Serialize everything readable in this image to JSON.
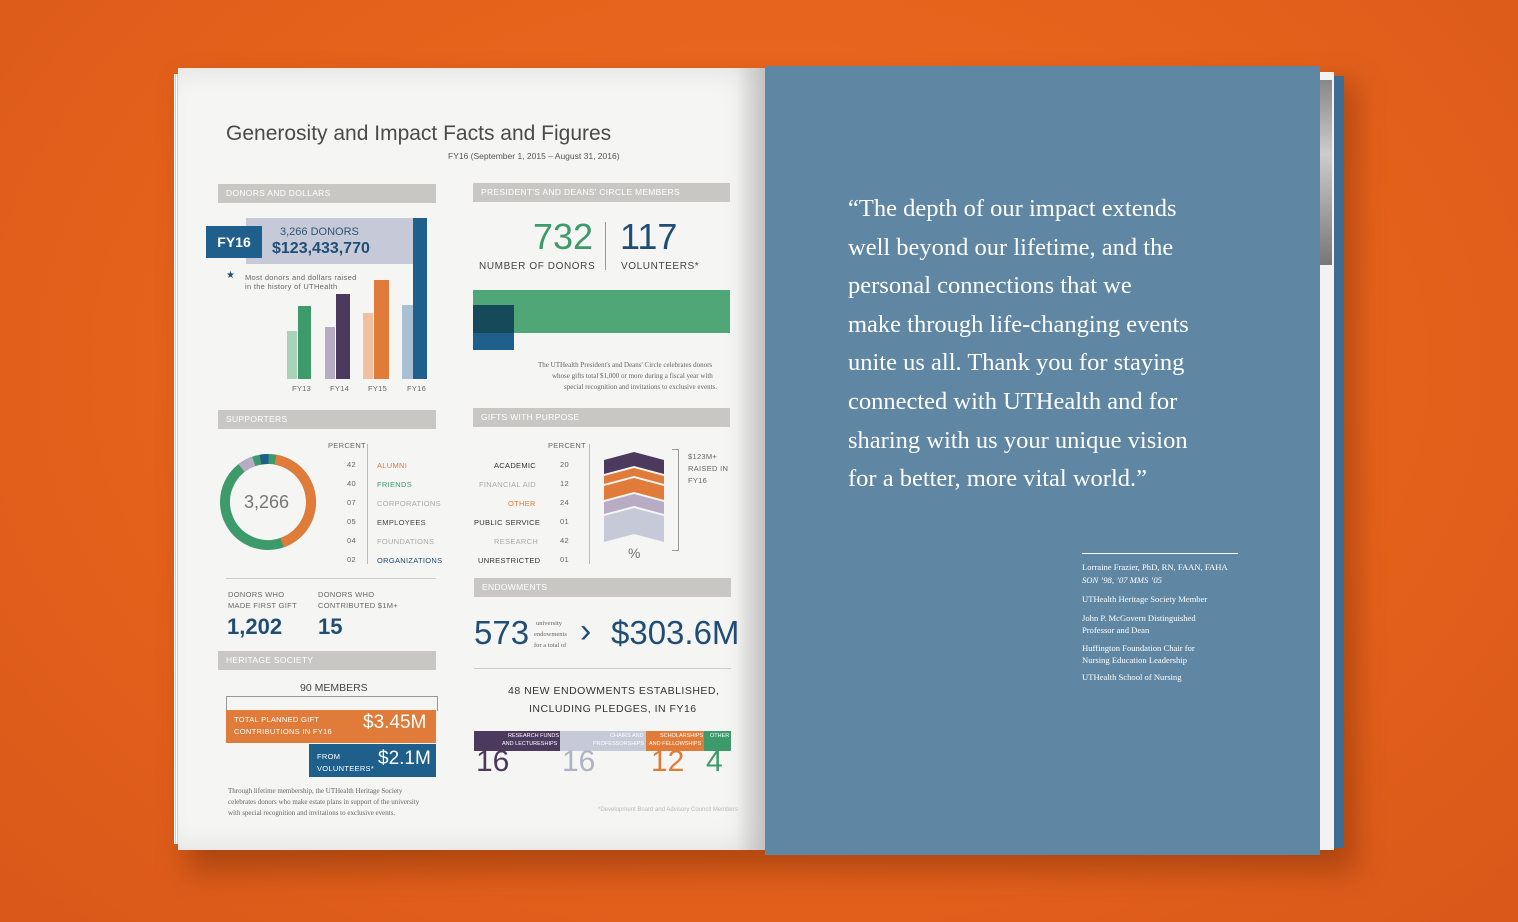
{
  "left_page": {
    "title": "Generosity and Impact Facts and Figures",
    "subtitle": "FY16 (September 1, 2015 – August 31, 2016)",
    "donors_and_dollars": {
      "header": "DONORS AND DOLLARS",
      "fy_label": "FY16",
      "donors": "3,266 DONORS",
      "dollars": "$123,433,770",
      "note_line1": "Most donors and dollars raised",
      "note_line2": "in the history of UTHealth",
      "years": [
        "FY13",
        "FY14",
        "FY15",
        "FY16"
      ]
    },
    "circle": {
      "header": "PRESIDENT'S AND DEANS' CIRCLE MEMBERS",
      "donors_num": "732",
      "donors_label": "NUMBER OF DONORS",
      "volunteers_num": "117",
      "volunteers_label": "VOLUNTEERS*",
      "caption_line1": "The UTHealth President's and Deans' Circle celebrates donors",
      "caption_line2": "whose gifts total $1,000 or more during a fiscal year with",
      "caption_line3": "special recognition and invitations to exclusive events."
    },
    "supporters": {
      "header": "SUPPORTERS",
      "center": "3,266",
      "percent_label": "PERCENT",
      "rows": [
        {
          "pct": "42",
          "label": "ALUMNI"
        },
        {
          "pct": "40",
          "label": "FRIENDS"
        },
        {
          "pct": "07",
          "label": "CORPORATIONS"
        },
        {
          "pct": "05",
          "label": "EMPLOYEES"
        },
        {
          "pct": "04",
          "label": "FOUNDATIONS"
        },
        {
          "pct": "02",
          "label": "ORGANIZATIONS"
        }
      ],
      "first_gift_label1": "DONORS WHO",
      "first_gift_label2": "MADE FIRST GIFT",
      "first_gift_value": "1,202",
      "million_label1": "DONORS WHO",
      "million_label2": "CONTRIBUTED $1M+",
      "million_value": "15"
    },
    "gifts": {
      "header": "GIFTS WITH PURPOSE",
      "percent_label": "PERCENT",
      "rows": [
        {
          "label": "ACADEMIC",
          "pct": "20"
        },
        {
          "label": "FINANCIAL AID",
          "pct": "12"
        },
        {
          "label": "OTHER",
          "pct": "24"
        },
        {
          "label": "PUBLIC SERVICE",
          "pct": "01"
        },
        {
          "label": "RESEARCH",
          "pct": "42"
        },
        {
          "label": "UNRESTRICTED",
          "pct": "01"
        }
      ],
      "raised1": "$123M+",
      "raised2": "RAISED IN",
      "raised3": "FY16",
      "pct_symbol": "%"
    },
    "heritage": {
      "header": "HERITAGE SOCIETY",
      "members": "90 MEMBERS",
      "planned_label1": "TOTAL PLANNED GIFT",
      "planned_label2": "CONTRIBUTIONS IN FY16",
      "planned_value": "$3.45M",
      "vol_label1": "FROM",
      "vol_label2": "VOLUNTEERS*",
      "vol_value": "$2.1M",
      "caption_line1": "Through lifetime membership, the UTHealth Heritage Society",
      "caption_line2": "celebrates donors who make estate plans in support of the university",
      "caption_line3": "with special recognition and invitations to exclusive events."
    },
    "endowments": {
      "header": "ENDOWMENTS",
      "count": "573",
      "mid1": "university",
      "mid2": "endowments",
      "mid3": "for a total of",
      "total": "$303.6M",
      "new_line1": "48 NEW ENDOWMENTS ESTABLISHED,",
      "new_line2": "INCLUDING PLEDGES, IN FY16",
      "cats": [
        {
          "label1": "RESEARCH FUNDS",
          "label2": "AND LECTURESHIPS",
          "num": "16"
        },
        {
          "label1": "CHAIRS AND",
          "label2": "PROFESSORSHIPS",
          "num": "16"
        },
        {
          "label1": "SCHOLARSHIPS",
          "label2": "AND FELLOWSHIPS",
          "num": "12"
        },
        {
          "label1": "OTHER",
          "label2": "",
          "num": "4"
        }
      ],
      "footnote": "*Development Board and Advisory Council Members"
    }
  },
  "right_page": {
    "quote_lines": [
      "“The depth of our impact extends",
      "well beyond our lifetime, and the",
      "personal connections that we",
      "make through life-changing events",
      "unite us all. Thank you for staying",
      "connected with UTHealth and for",
      "sharing with us your unique vision",
      "for a better, more vital world.”"
    ],
    "name": "Lorraine Frazier, PhD, RN, FAAN, FAHA",
    "degrees": "SON ’98, ’07 MMS ’05",
    "role1": "UTHealth Heritage Society Member",
    "role2a": "John P. McGovern Distinguished",
    "role2b": "Professor and Dean",
    "role3a": "Huffington Foundation Chair for",
    "role3b": "Nursing Education Leadership",
    "role4": "UTHealth School of Nursing"
  },
  "colors": {
    "background": "#e8661f",
    "cover": "#5f86a3",
    "blue": "#1f5f8b",
    "green": "#3d9a6a",
    "orange": "#e07b39",
    "purple": "#4b3a5e",
    "grey": "#c8c7c3"
  }
}
